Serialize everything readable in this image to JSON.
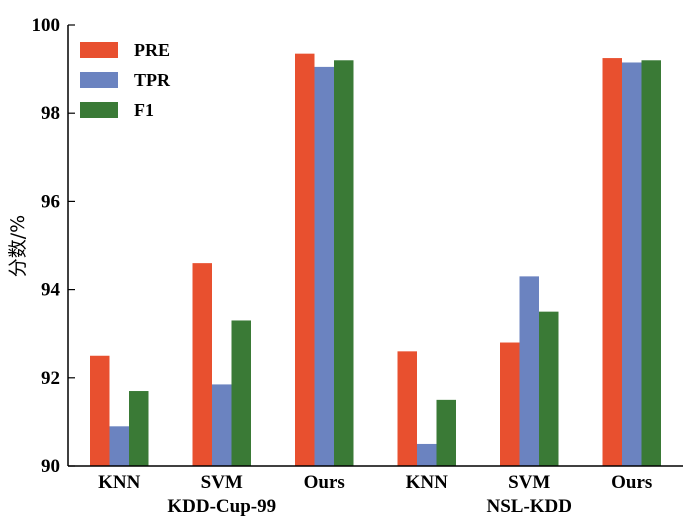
{
  "chart_data": {
    "type": "bar",
    "ylabel": "分数/%",
    "ylim": [
      90,
      100
    ],
    "yticks": [
      90,
      92,
      94,
      96,
      98,
      100
    ],
    "grid": false,
    "legend_position": "top-left",
    "groups": [
      {
        "name": "KDD-Cup-99",
        "categories": [
          "KNN",
          "SVM",
          "Ours"
        ]
      },
      {
        "name": "NSL-KDD",
        "categories": [
          "KNN",
          "SVM",
          "Ours"
        ]
      }
    ],
    "categories": [
      "KNN",
      "SVM",
      "Ours",
      "KNN",
      "SVM",
      "Ours"
    ],
    "series": [
      {
        "name": "PRE",
        "color": "#E8502F",
        "values": [
          92.5,
          94.6,
          99.35,
          92.6,
          92.8,
          99.25
        ]
      },
      {
        "name": "TPR",
        "color": "#6B83C0",
        "values": [
          90.9,
          91.85,
          99.05,
          90.5,
          94.3,
          99.15
        ]
      },
      {
        "name": "F1",
        "color": "#3A7A36",
        "values": [
          91.7,
          93.3,
          99.2,
          91.5,
          93.5,
          99.2
        ]
      }
    ]
  }
}
